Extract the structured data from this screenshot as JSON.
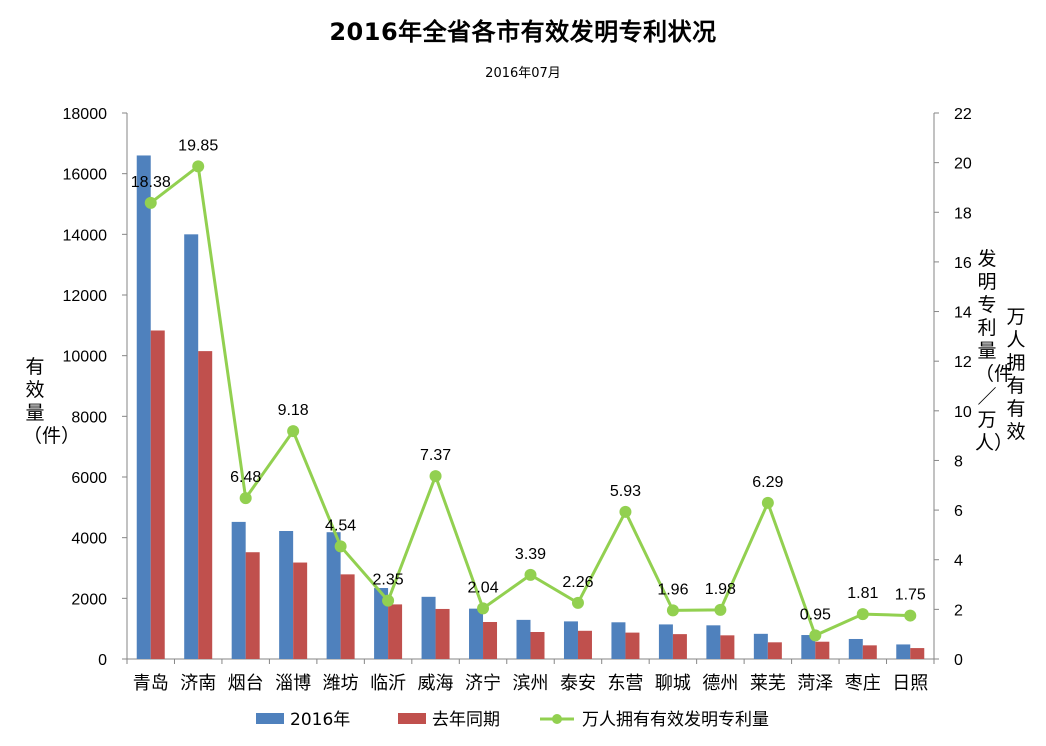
{
  "chart_data": {
    "type": "bar",
    "title": "2016年全省各市有效发明专利状况",
    "subtitle": "2016年07月",
    "categories": [
      "青岛",
      "济南",
      "烟台",
      "淄博",
      "潍坊",
      "临沂",
      "威海",
      "济宁",
      "滨州",
      "泰安",
      "东营",
      "聊城",
      "德州",
      "莱芜",
      "菏泽",
      "枣庄",
      "日照"
    ],
    "ylabel": "有效量（件）",
    "y2label_part1": "万人拥有有效",
    "y2label_part2": "发明专利量（件／万人）",
    "ylim": [
      0,
      18000
    ],
    "ytick_step": 2000,
    "y2lim": [
      0,
      22
    ],
    "y2tick_step": 2,
    "series": [
      {
        "name": "2016年",
        "type": "bar",
        "axis": "left",
        "color": "#4f81bd",
        "values": [
          16600,
          14000,
          4520,
          4220,
          4180,
          2340,
          2050,
          1660,
          1290,
          1240,
          1210,
          1140,
          1110,
          830,
          790,
          660,
          480
        ]
      },
      {
        "name": "去年同期",
        "type": "bar",
        "axis": "left",
        "color": "#c0504d",
        "values": [
          10830,
          10150,
          3520,
          3180,
          2790,
          1800,
          1650,
          1220,
          890,
          930,
          870,
          820,
          780,
          550,
          570,
          450,
          360
        ]
      },
      {
        "name": "万人拥有有效发明专利量",
        "type": "line",
        "axis": "right",
        "color": "#92d050",
        "values": [
          18.38,
          19.85,
          6.48,
          9.18,
          4.54,
          2.35,
          7.37,
          2.04,
          3.39,
          2.26,
          5.93,
          1.96,
          1.98,
          6.29,
          0.95,
          1.81,
          1.75
        ],
        "labels": [
          "18.38",
          "19.85",
          "6.48",
          "9.18",
          "4.54",
          "2.35",
          "7.37",
          "2.04",
          "3.39",
          "2.26",
          "5.93",
          "1.96",
          "1.98",
          "6.29",
          "0.95",
          "1.81",
          "1.75"
        ]
      }
    ],
    "grid": false,
    "legend_position": "bottom"
  }
}
